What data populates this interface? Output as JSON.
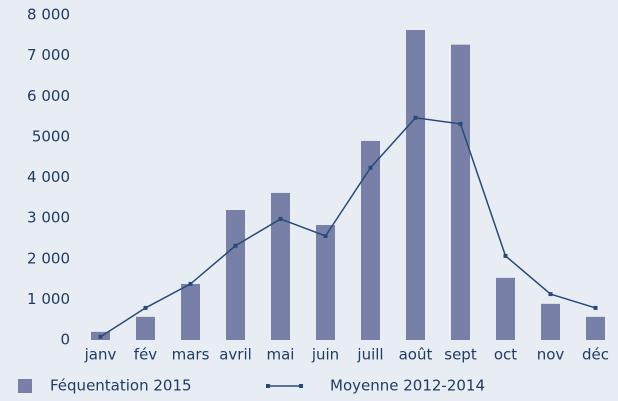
{
  "chart_data": {
    "type": "bar_line",
    "categories": [
      "janv",
      "fév",
      "mars",
      "avril",
      "mai",
      "juin",
      "juill",
      "août",
      "sept",
      "oct",
      "nov",
      "déc"
    ],
    "series": [
      {
        "name": "Féquentation 2015",
        "type": "bar",
        "color": "#7880a8",
        "values": [
          200,
          570,
          1380,
          3200,
          3620,
          2830,
          4900,
          7630,
          7270,
          1530,
          890,
          570
        ]
      },
      {
        "name": "Moyenne 2012-2014",
        "type": "line",
        "color": "#274a7c",
        "values": [
          80,
          790,
          1380,
          2320,
          2980,
          2560,
          4240,
          5470,
          5320,
          2070,
          1130,
          790
        ]
      }
    ],
    "ylim": [
      0,
      8000
    ],
    "yticks": [
      0,
      {
        "value": 1000,
        "label": "1 000"
      },
      {
        "value": 2000,
        "label": "2 000"
      },
      {
        "value": 3000,
        "label": "3 000"
      },
      {
        "value": 4000,
        "label": "4 000"
      },
      5000,
      {
        "value": 6000,
        "label": "6 000"
      },
      {
        "value": 7000,
        "label": "7 000"
      },
      {
        "value": 8000,
        "label": "8 000"
      }
    ],
    "grid": false
  }
}
